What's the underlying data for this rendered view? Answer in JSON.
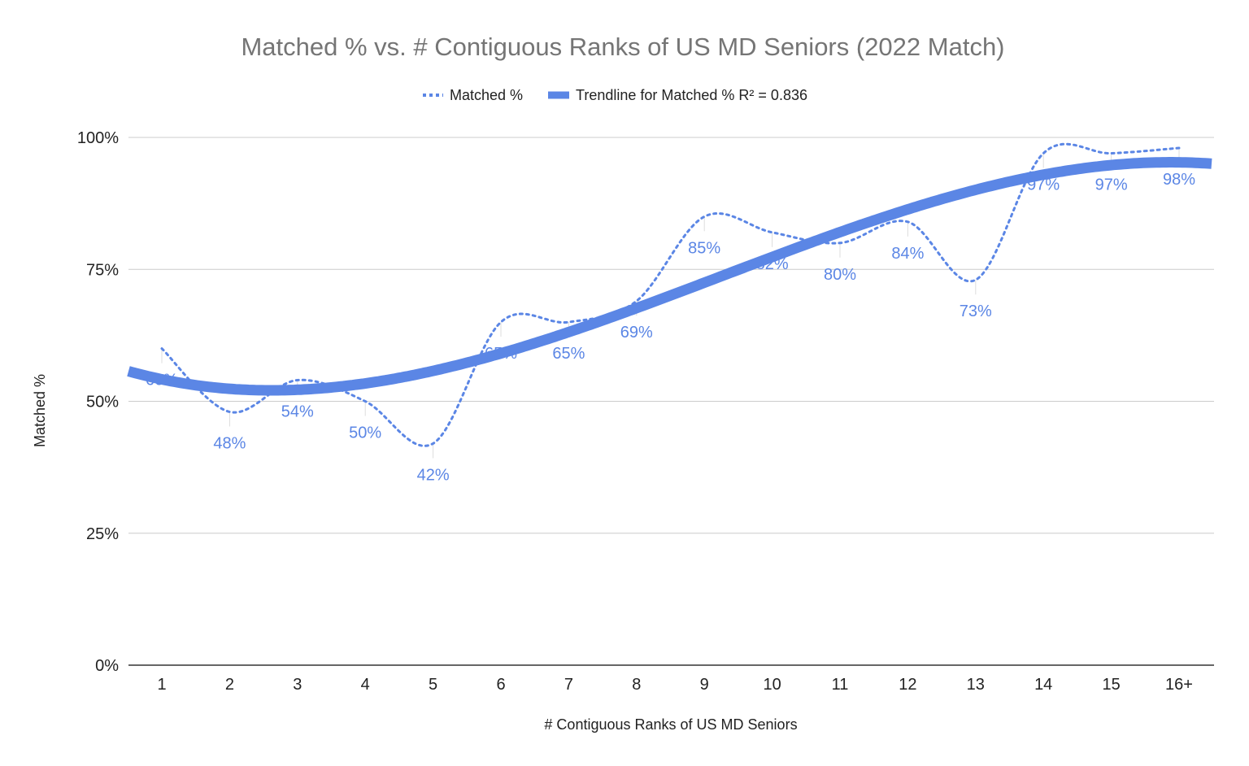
{
  "chart_data": {
    "type": "line",
    "title": "Matched % vs. # Contiguous Ranks of US MD Seniors (2022 Match)",
    "xlabel": "# Contiguous Ranks of US MD Seniors",
    "ylabel": "Matched %",
    "categories": [
      "1",
      "2",
      "3",
      "4",
      "5",
      "6",
      "7",
      "8",
      "9",
      "10",
      "11",
      "12",
      "13",
      "14",
      "15",
      "16+"
    ],
    "y_ticks": [
      "0%",
      "25%",
      "50%",
      "75%",
      "100%"
    ],
    "ylim": [
      0,
      100
    ],
    "grid": true,
    "legend_position": "top",
    "series": [
      {
        "name": "Matched %",
        "style": "dotted",
        "color": "#5b86e5",
        "values": [
          60,
          48,
          54,
          50,
          42,
          65,
          65,
          69,
          85,
          82,
          80,
          84,
          73,
          97,
          97,
          98
        ],
        "data_labels": [
          "60%",
          "48%",
          "54%",
          "50%",
          "42%",
          "65%",
          "65%",
          "69%",
          "85%",
          "82%",
          "80%",
          "84%",
          "73%",
          "97%",
          "97%",
          "98%"
        ]
      },
      {
        "name": "Trendline for Matched % R² = 0.836",
        "style": "solid-thick",
        "color": "#5b86e5",
        "type": "polynomial-trendline"
      }
    ]
  }
}
